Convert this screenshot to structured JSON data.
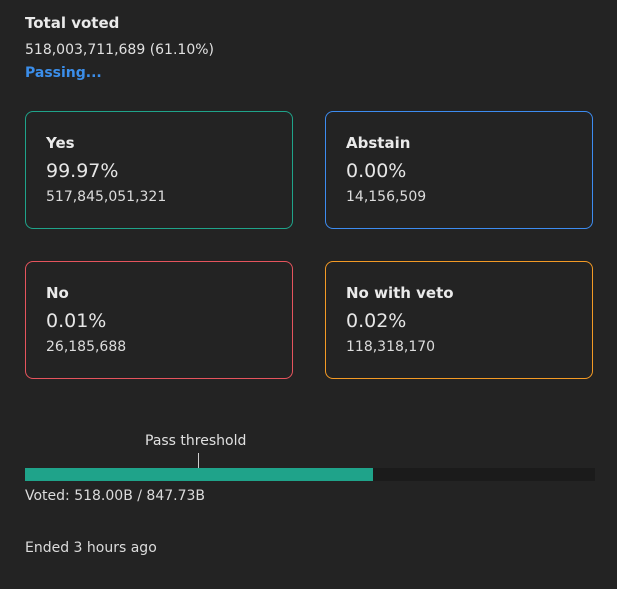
{
  "total": {
    "label": "Total voted",
    "value": "518,003,711,689 (61.10%)",
    "status": "Passing..."
  },
  "cards": {
    "yes": {
      "label": "Yes",
      "percent": "99.97%",
      "amount": "517,845,051,321"
    },
    "abstain": {
      "label": "Abstain",
      "percent": "0.00%",
      "amount": "14,156,509"
    },
    "no": {
      "label": "No",
      "percent": "0.01%",
      "amount": "26,185,688"
    },
    "veto": {
      "label": "No with veto",
      "percent": "0.02%",
      "amount": "118,318,170"
    }
  },
  "colors": {
    "yes": "#1fa38a",
    "abstain": "#3d8cf0",
    "no": "#e5545d",
    "veto": "#f39a25",
    "status": "#3b8eea"
  },
  "progress": {
    "threshold_label": "Pass threshold",
    "fill_fraction": 0.611,
    "threshold_fraction": 0.304,
    "summary": "Voted: 518.00B / 847.73B"
  },
  "footer": {
    "ended": "Ended 3 hours ago"
  }
}
